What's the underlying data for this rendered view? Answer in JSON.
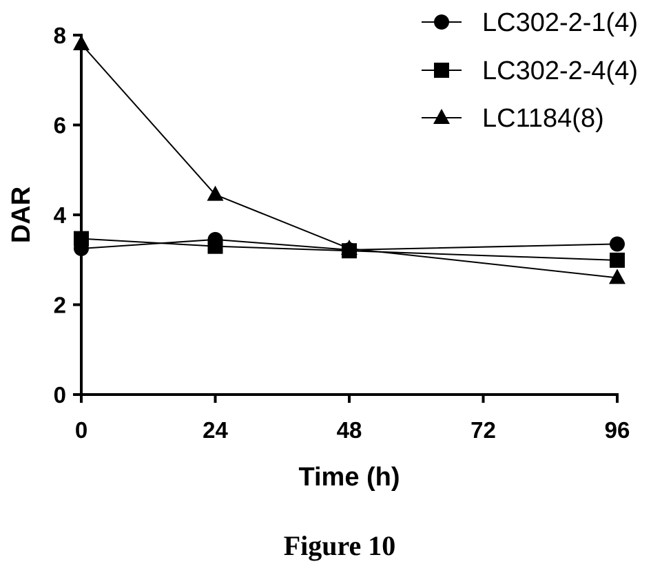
{
  "chart_data": {
    "type": "line",
    "xlabel": "Time (h)",
    "ylabel": "DAR",
    "xlim": [
      0,
      96
    ],
    "ylim": [
      0,
      8
    ],
    "xticks": [
      "0",
      "24",
      "48",
      "72",
      "96"
    ],
    "yticks": [
      "0",
      "2",
      "4",
      "6",
      "8"
    ],
    "legend_position": "top-right",
    "grid": false,
    "series": [
      {
        "name": "LC302-2-1(4)",
        "marker": "circle",
        "x": [
          0,
          24,
          48,
          96
        ],
        "y": [
          3.25,
          3.45,
          3.22,
          3.35
        ]
      },
      {
        "name": "LC302-2-4(4)",
        "marker": "square",
        "x": [
          0,
          24,
          48,
          96
        ],
        "y": [
          3.47,
          3.3,
          3.2,
          2.99
        ]
      },
      {
        "name": "LC1184(8)",
        "marker": "triangle",
        "x": [
          0,
          24,
          48,
          96
        ],
        "y": [
          7.8,
          4.45,
          3.25,
          2.6
        ]
      }
    ]
  },
  "caption": "Figure 10"
}
